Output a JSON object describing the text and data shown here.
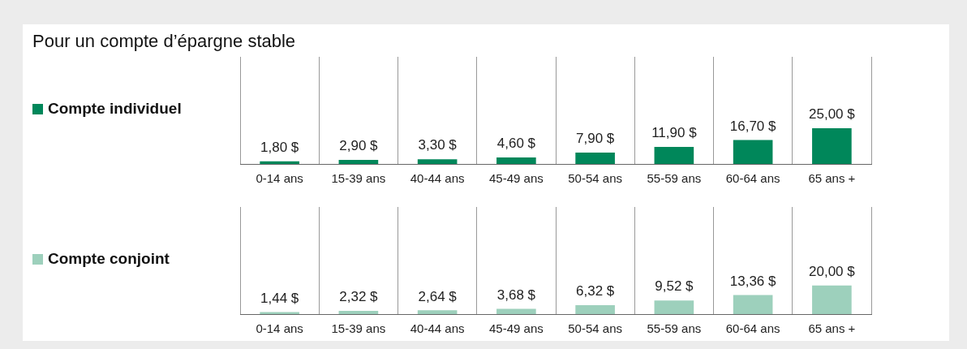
{
  "chart_data": [
    {
      "type": "bar",
      "title": "Pour un compte d’épargne stable",
      "categories": [
        "0-14 ans",
        "15-39 ans",
        "40-44 ans",
        "45-49 ans",
        "50-54 ans",
        "55-59 ans",
        "60-64 ans",
        "65 ans +"
      ],
      "series": [
        {
          "name": "Compte individuel",
          "color": "#00875a",
          "values": [
            1.8,
            2.9,
            3.3,
            4.6,
            7.9,
            11.9,
            16.7,
            25.0
          ],
          "value_labels": [
            "1,80 $",
            "2,90 $",
            "3,30 $",
            "4,60 $",
            "7,90 $",
            "11,90 $",
            "16,70 $",
            "25,00 $"
          ]
        }
      ],
      "legend": "left",
      "grid": "x",
      "tick_labels": "x"
    },
    {
      "type": "bar",
      "categories": [
        "0-14 ans",
        "15-39 ans",
        "40-44 ans",
        "45-49 ans",
        "50-54 ans",
        "55-59 ans",
        "60-64 ans",
        "65 ans +"
      ],
      "series": [
        {
          "name": "Compte conjoint",
          "color": "#9dd0bc",
          "values": [
            1.44,
            2.32,
            2.64,
            3.68,
            6.32,
            9.52,
            13.36,
            20.0
          ],
          "value_labels": [
            "1,44 $",
            "2,32 $",
            "2,64 $",
            "3,68 $",
            "6,32 $",
            "9,52 $",
            "13,36 $",
            "20,00 $"
          ]
        }
      ],
      "legend": "left",
      "grid": "x",
      "tick_labels": "x"
    }
  ]
}
